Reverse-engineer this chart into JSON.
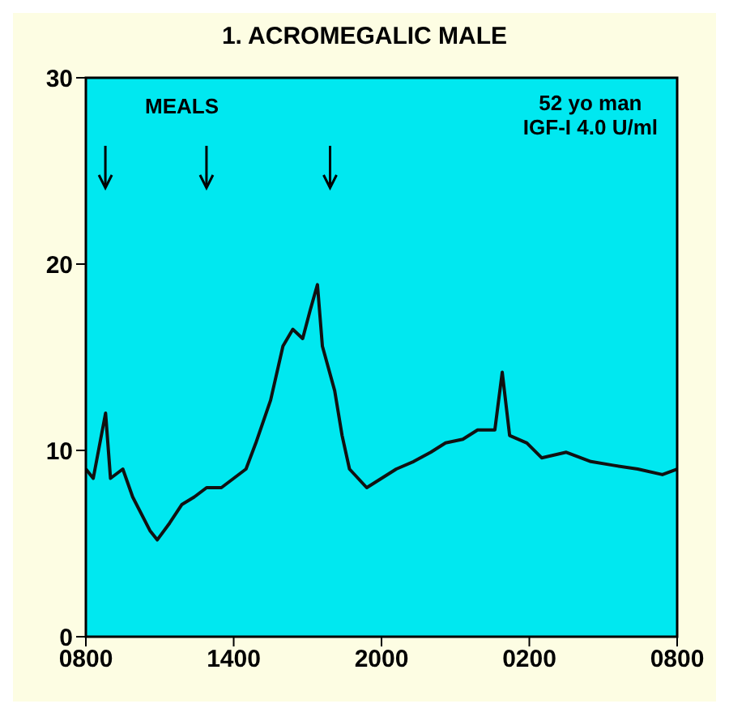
{
  "chart_data": {
    "type": "line",
    "title": "1. ACROMEGALIC MALE",
    "annotations": [
      "MEALS",
      "52 yo man",
      "IGF-I 4.0 U/ml"
    ],
    "x": [
      "2000-01-01T08:00",
      "2000-01-01T08:18",
      "2000-01-01T08:48",
      "2000-01-01T09:00",
      "2000-01-01T09:30",
      "2000-01-01T09:54",
      "2000-01-01T10:36",
      "2000-01-01T10:54",
      "2000-01-01T11:24",
      "2000-01-01T11:54",
      "2000-01-01T12:24",
      "2000-01-01T12:54",
      "2000-01-01T13:30",
      "2000-01-01T14:00",
      "2000-01-01T14:30",
      "2000-01-01T14:54",
      "2000-01-01T15:30",
      "2000-01-01T16:00",
      "2000-01-01T16:24",
      "2000-01-01T16:48",
      "2000-01-01T17:06",
      "2000-01-01T17:24",
      "2000-01-01T17:36",
      "2000-01-01T18:06",
      "2000-01-01T18:24",
      "2000-01-01T18:42",
      "2000-01-01T19:24",
      "2000-01-01T20:00",
      "2000-01-01T20:36",
      "2000-01-01T21:18",
      "2000-01-01T22:00",
      "2000-01-01T22:36",
      "2000-01-01T23:18",
      "2000-01-01T23:54",
      "2000-01-02T00:36",
      "2000-01-02T00:54",
      "2000-01-02T01:12",
      "2000-01-02T01:54",
      "2000-01-02T02:30",
      "2000-01-02T03:30",
      "2000-01-02T04:30",
      "2000-01-02T05:24",
      "2000-01-02T06:24",
      "2000-01-02T07:24",
      "2000-01-02T08:00"
    ],
    "series": [
      {
        "color": "#111111",
        "values": [
          9.0,
          8.5,
          12.0,
          8.5,
          9.0,
          7.5,
          5.7,
          5.2,
          6.1,
          7.1,
          7.5,
          8.0,
          8.0,
          8.5,
          9.0,
          10.4,
          12.7,
          15.6,
          16.5,
          16.0,
          17.5,
          18.9,
          15.6,
          13.2,
          10.8,
          9.0,
          8.0,
          8.5,
          9.0,
          9.4,
          9.9,
          10.4,
          10.6,
          11.1,
          11.1,
          14.2,
          10.8,
          10.4,
          9.6,
          9.9,
          9.4,
          9.2,
          9.0,
          8.7,
          9.0
        ]
      }
    ],
    "xlim": [
      "2000-01-01T08:00",
      "2000-01-02T08:00"
    ],
    "xticks": [
      {
        "value": "2000-01-01T08:00",
        "label": "0800"
      },
      {
        "value": "2000-01-01T14:00",
        "label": "1400"
      },
      {
        "value": "2000-01-01T20:00",
        "label": "2000"
      },
      {
        "value": "2000-01-02T02:00",
        "label": "0200"
      },
      {
        "value": "2000-01-02T08:00",
        "label": "0800"
      }
    ],
    "ylim": [
      0,
      30
    ],
    "yticks": [
      0,
      10,
      20,
      30
    ],
    "marker": "none",
    "line_style": "solid"
  }
}
